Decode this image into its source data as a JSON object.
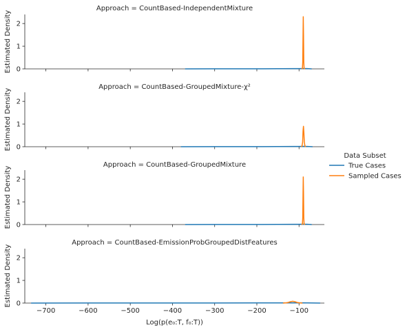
{
  "chart_data": [
    {
      "type": "line",
      "panel_title": "Approach = CountBased-IndependentMixture",
      "ylabel": "Estimated Density",
      "xlim": [
        -750,
        -40
      ],
      "ylim": [
        0,
        2.4
      ],
      "yticks": [
        0,
        1,
        2
      ],
      "series": [
        {
          "name": "True Cases",
          "color": "#1f77b4",
          "x": [
            -370,
            -300,
            -200,
            -150,
            -110,
            -100,
            -90,
            -80,
            -70
          ],
          "y": [
            0,
            0.002,
            0.004,
            0.006,
            0.01,
            0.012,
            0.015,
            0.01,
            0
          ]
        },
        {
          "name": "Sampled Cases",
          "color": "#ff7f0e",
          "x": [
            -94,
            -92,
            -91.2,
            -90.5,
            -90,
            -89.4,
            -88.8,
            -88,
            -86
          ],
          "y": [
            0,
            0.02,
            0.3,
            1.5,
            2.3,
            1.5,
            0.3,
            0.02,
            0
          ]
        }
      ]
    },
    {
      "type": "line",
      "panel_title": "Approach = CountBased-GroupedMixture-χ²",
      "ylabel": "Estimated Density",
      "xlim": [
        -750,
        -40
      ],
      "ylim": [
        0,
        2.4
      ],
      "yticks": [
        0,
        1,
        2
      ],
      "series": [
        {
          "name": "True Cases",
          "color": "#1f77b4",
          "x": [
            -380,
            -300,
            -200,
            -150,
            -110,
            -100,
            -90,
            -80,
            -68
          ],
          "y": [
            0,
            0.002,
            0.004,
            0.006,
            0.01,
            0.012,
            0.015,
            0.01,
            0
          ]
        },
        {
          "name": "Sampled Cases",
          "color": "#ff7f0e",
          "x": [
            -95,
            -93,
            -91.5,
            -90.5,
            -89.5,
            -88.5,
            -87.5,
            -86,
            -84
          ],
          "y": [
            0,
            0.03,
            0.2,
            0.7,
            0.9,
            0.6,
            0.2,
            0.03,
            0
          ]
        }
      ]
    },
    {
      "type": "line",
      "panel_title": "Approach = CountBased-GroupedMixture",
      "ylabel": "Estimated Density",
      "xlim": [
        -750,
        -40
      ],
      "ylim": [
        0,
        2.4
      ],
      "yticks": [
        0,
        1,
        2
      ],
      "series": [
        {
          "name": "True Cases",
          "color": "#1f77b4",
          "x": [
            -370,
            -300,
            -200,
            -150,
            -110,
            -100,
            -90,
            -80,
            -70
          ],
          "y": [
            0,
            0.002,
            0.004,
            0.006,
            0.01,
            0.012,
            0.015,
            0.01,
            0
          ]
        },
        {
          "name": "Sampled Cases",
          "color": "#ff7f0e",
          "x": [
            -94,
            -92,
            -91.2,
            -90.5,
            -90,
            -89.4,
            -88.8,
            -88,
            -86
          ],
          "y": [
            0,
            0.02,
            0.3,
            1.4,
            2.1,
            1.4,
            0.3,
            0.02,
            0
          ]
        }
      ]
    },
    {
      "type": "line",
      "panel_title": "Approach = CountBased-EmissionProbGroupedDistFeatures",
      "ylabel": "Estimated Density",
      "xlabel": "Log(p(e₀:T, f₀:T))",
      "xlim": [
        -750,
        -40
      ],
      "ylim": [
        0,
        2.4
      ],
      "yticks": [
        0,
        1,
        2
      ],
      "xticks": [
        -700,
        -600,
        -500,
        -400,
        -300,
        -200,
        -100
      ],
      "series": [
        {
          "name": "True Cases",
          "color": "#1f77b4",
          "x": [
            -735,
            -600,
            -400,
            -300,
            -200,
            -150,
            -110,
            -100,
            -80,
            -50
          ],
          "y": [
            0,
            0.002,
            0.003,
            0.005,
            0.006,
            0.008,
            0.01,
            0.01,
            0.006,
            0
          ]
        },
        {
          "name": "Sampled Cases",
          "color": "#ff7f0e",
          "x": [
            -138,
            -130,
            -125,
            -120,
            -115,
            -110,
            -105,
            -100,
            -92
          ],
          "y": [
            0,
            0.01,
            0.03,
            0.06,
            0.08,
            0.06,
            0.03,
            0.01,
            0
          ]
        }
      ]
    }
  ],
  "legend": {
    "title": "Data Subset",
    "placement": "right",
    "entries": [
      {
        "label": "True Cases",
        "color": "#1f77b4"
      },
      {
        "label": "Sampled Cases",
        "color": "#ff7f0e"
      }
    ]
  }
}
